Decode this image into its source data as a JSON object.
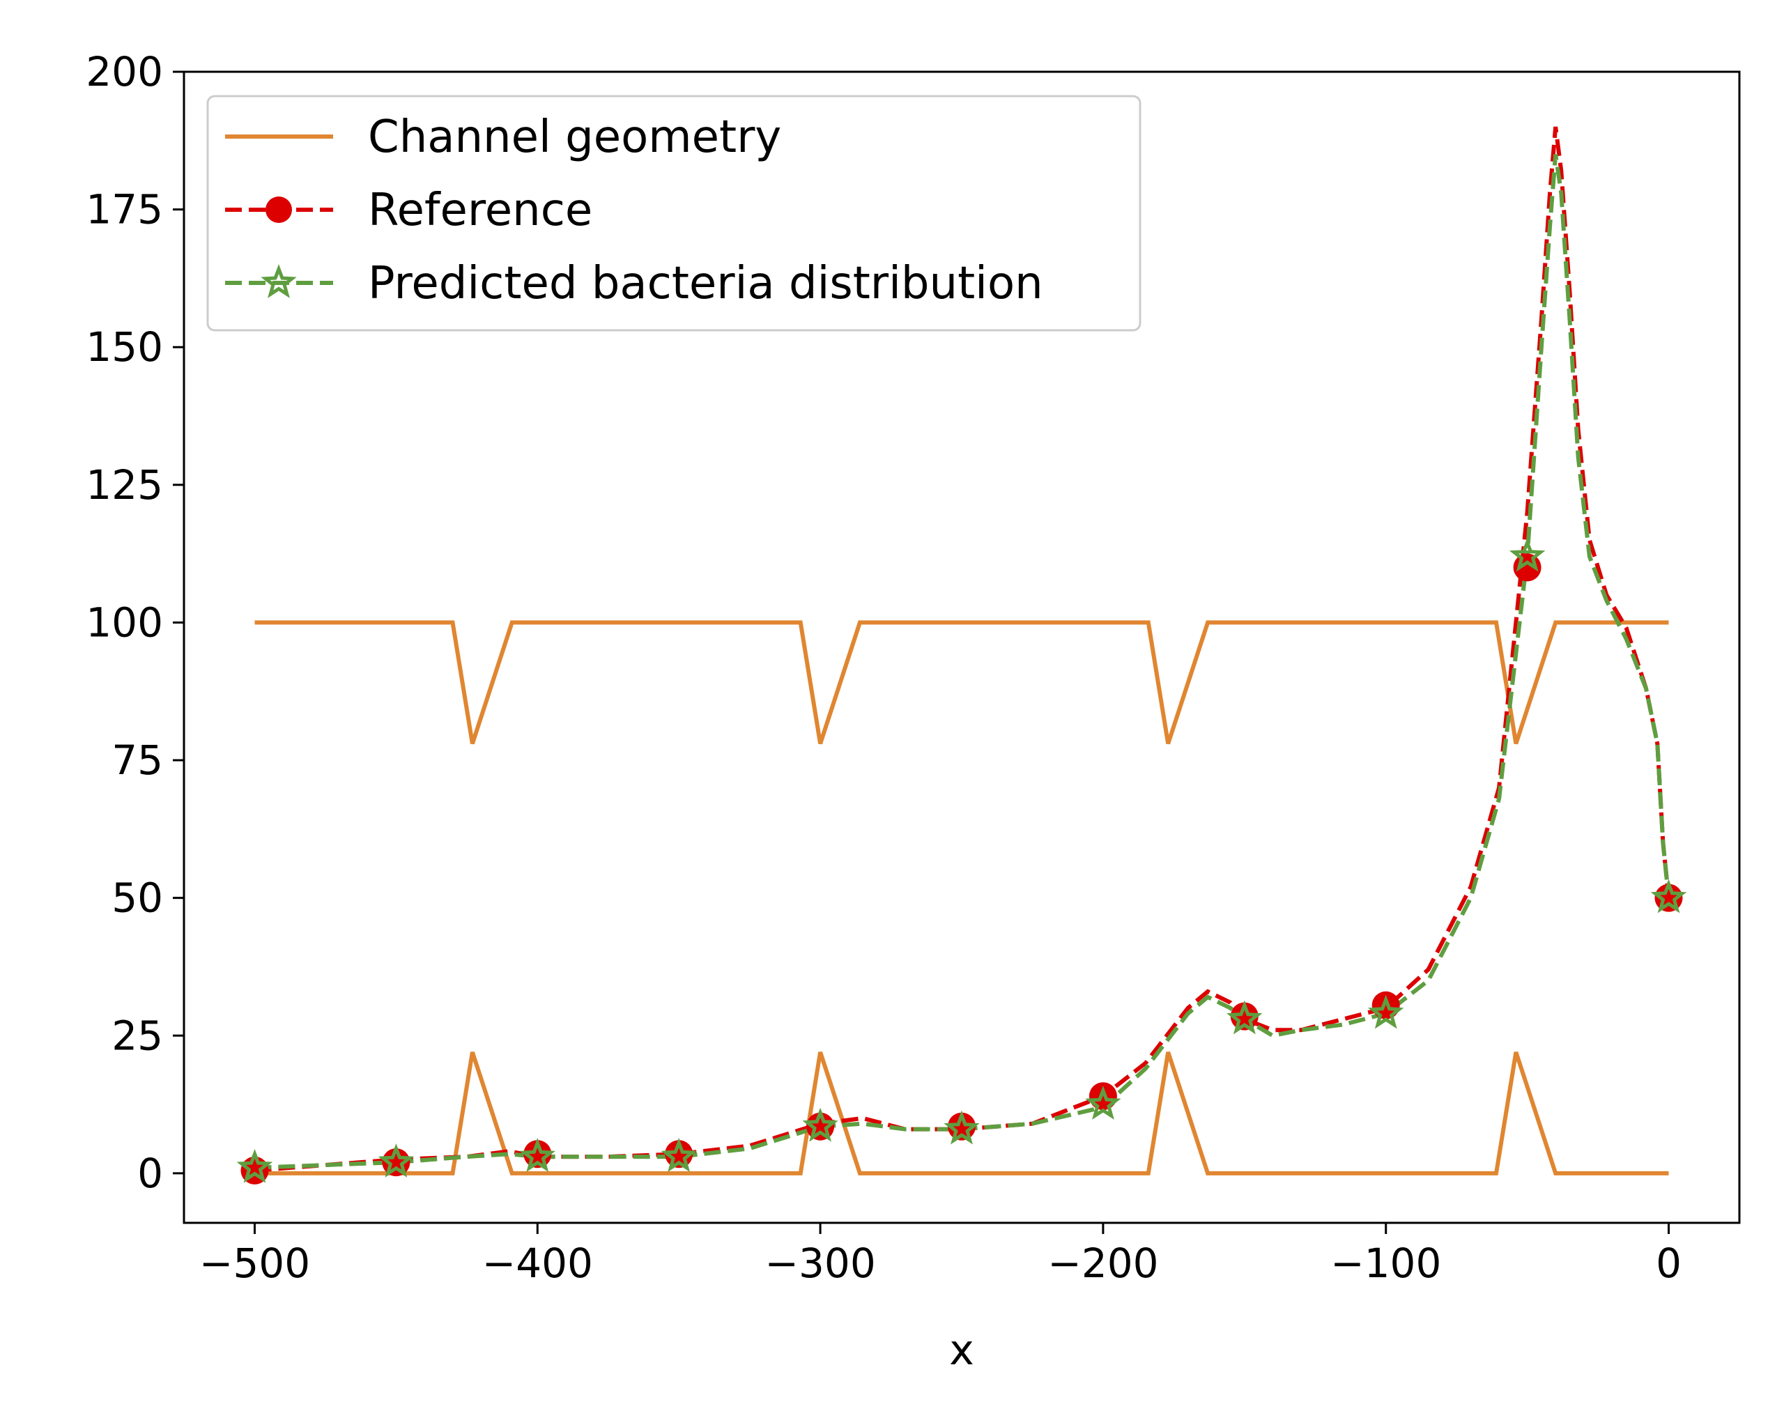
{
  "chart_data": {
    "type": "line",
    "title": "",
    "xlabel": "x",
    "ylabel": "",
    "xlim": [
      -525,
      25
    ],
    "ylim": [
      -9,
      200
    ],
    "xticks": [
      -500,
      -400,
      -300,
      -200,
      -100,
      0
    ],
    "xtick_labels": [
      "−500",
      "−400",
      "−300",
      "−200",
      "−100",
      "0"
    ],
    "yticks": [
      0,
      25,
      50,
      75,
      100,
      125,
      150,
      175,
      200
    ],
    "ytick_labels": [
      "0",
      "25",
      "50",
      "75",
      "100",
      "125",
      "150",
      "175",
      "200"
    ],
    "grid": false,
    "legend_position": "upper-left",
    "colors": {
      "channel": "#e08631",
      "reference": "#dc0000",
      "predicted": "#5f9e40"
    },
    "series": [
      {
        "name": "Channel geometry",
        "style": "solid",
        "parts": [
          {
            "x": [
              -500,
              -430,
              -423,
              -409,
              -307,
              -300,
              -286,
              -184,
              -177,
              -163,
              -61,
              -54,
              -40,
              0
            ],
            "y": [
              100,
              100,
              78,
              100,
              100,
              78,
              100,
              100,
              78,
              100,
              100,
              78,
              100,
              100
            ]
          },
          {
            "x": [
              -500,
              -430,
              -423,
              -409,
              -307,
              -300,
              -286,
              -184,
              -177,
              -163,
              -61,
              -54,
              -40,
              0
            ],
            "y": [
              0,
              0,
              22,
              0,
              0,
              22,
              0,
              0,
              22,
              0,
              0,
              22,
              0,
              0
            ]
          }
        ]
      },
      {
        "name": "Reference",
        "style": "dashed-circle",
        "x": [
          -500,
          -475,
          -450,
          -425,
          -410,
          -400,
          -375,
          -350,
          -325,
          -300,
          -285,
          -270,
          -250,
          -225,
          -200,
          -185,
          -170,
          -163,
          -155,
          -150,
          -140,
          -130,
          -115,
          -100,
          -85,
          -70,
          -60,
          -55,
          -50,
          -45,
          -42,
          -40,
          -38,
          -35,
          -32,
          -28,
          -22,
          -15,
          -8,
          -4,
          -2,
          0
        ],
        "y": [
          0.5,
          1.5,
          2.5,
          3,
          4,
          3,
          3,
          3.5,
          5,
          9,
          10,
          8,
          8,
          9,
          14,
          20,
          30,
          33,
          31,
          28,
          26,
          26,
          28,
          30,
          37,
          52,
          70,
          95,
          120,
          155,
          178,
          190,
          182,
          160,
          135,
          115,
          105,
          99,
          88,
          78,
          60,
          50
        ],
        "markers_x": [
          -500,
          -450,
          -400,
          -350,
          -300,
          -250,
          -200,
          -150,
          -100,
          -50,
          0
        ],
        "markers_y": [
          0.5,
          2,
          3.5,
          3.5,
          8.5,
          8.5,
          14,
          28.5,
          30.5,
          110,
          50
        ]
      },
      {
        "name": "Predicted bacteria distribution",
        "style": "dashed-star",
        "x": [
          -500,
          -475,
          -450,
          -425,
          -410,
          -400,
          -375,
          -350,
          -325,
          -300,
          -285,
          -270,
          -250,
          -225,
          -200,
          -185,
          -170,
          -163,
          -155,
          -150,
          -140,
          -130,
          -115,
          -100,
          -85,
          -70,
          -60,
          -55,
          -50,
          -45,
          -42,
          -40,
          -38,
          -35,
          -32,
          -28,
          -22,
          -15,
          -8,
          -4,
          -2,
          0
        ],
        "y": [
          1,
          1.5,
          2,
          3,
          3.5,
          3,
          3,
          3,
          4.5,
          8.5,
          9,
          8,
          8,
          9,
          12,
          19,
          29,
          32,
          30,
          28,
          25,
          26,
          27,
          29,
          35,
          50,
          68,
          90,
          112,
          150,
          172,
          185,
          178,
          155,
          130,
          112,
          104,
          97,
          88,
          78,
          60,
          50
        ],
        "markers_x": [
          -500,
          -450,
          -400,
          -350,
          -300,
          -250,
          -200,
          -150,
          -100,
          -50,
          0
        ],
        "markers_y": [
          1,
          2,
          3,
          3,
          8.5,
          8,
          12.5,
          28,
          29,
          112,
          50
        ]
      }
    ]
  }
}
